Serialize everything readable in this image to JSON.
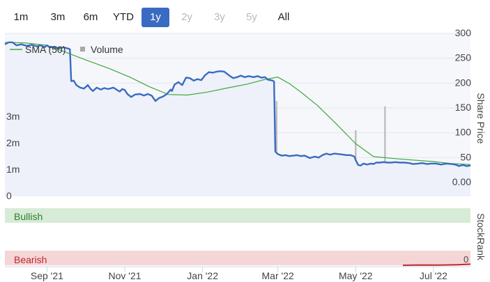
{
  "range_buttons": [
    {
      "label": "1m",
      "state": "normal"
    },
    {
      "label": "3m",
      "state": "normal"
    },
    {
      "label": "6m",
      "state": "normal"
    },
    {
      "label": "YTD",
      "state": "normal"
    },
    {
      "label": "1y",
      "state": "active"
    },
    {
      "label": "2y",
      "state": "disabled"
    },
    {
      "label": "3y",
      "state": "disabled"
    },
    {
      "label": "5y",
      "state": "disabled"
    },
    {
      "label": "All",
      "state": "normal"
    }
  ],
  "colors": {
    "price_line": "#3a6bc2",
    "sma_line": "#3ea83e",
    "volume_bar": "#bdbdbd",
    "bullish_band": "#d6ecd6",
    "bearish_band": "#f4d6d6",
    "stockrank_line": "#c0262d",
    "active_button": "#3a6bc2"
  },
  "chart_data": [
    {
      "type": "line",
      "legend": [
        {
          "name": "SMA (50)",
          "icon": "line"
        },
        {
          "name": "Volume",
          "icon": "square"
        }
      ],
      "right_axis_label": "Share Price",
      "right_ticks": [
        "300",
        "250",
        "200",
        "150",
        "100",
        "50",
        "0.00"
      ],
      "right_ylim": [
        0,
        300
      ],
      "left_ticks": [
        "3m",
        "2m",
        "1m",
        "0"
      ],
      "left_ylim": [
        0,
        4000000
      ],
      "x_ticks": [
        "Sep '21",
        "Nov '21",
        "Jan '22",
        "Mar '22",
        "May '22",
        "Jul '22"
      ],
      "x_tick_dates": [
        "2021-09-01",
        "2021-11-01",
        "2022-01-01",
        "2022-03-01",
        "2022-05-01",
        "2022-07-01"
      ],
      "x_range": [
        "2021-07-30",
        "2022-07-30"
      ],
      "series": [
        {
          "name": "Price",
          "points": [
            [
              "2021-07-30",
              278
            ],
            [
              "2021-08-02",
              282
            ],
            [
              "2021-08-05",
              282
            ],
            [
              "2021-08-08",
              276
            ],
            [
              "2021-08-12",
              278
            ],
            [
              "2021-08-16",
              275
            ],
            [
              "2021-08-20",
              277
            ],
            [
              "2021-08-24",
              274
            ],
            [
              "2021-08-27",
              276
            ],
            [
              "2021-08-30",
              272
            ],
            [
              "2021-09-01",
              276
            ],
            [
              "2021-09-03",
              272
            ],
            [
              "2021-09-07",
              273
            ],
            [
              "2021-09-10",
              270
            ],
            [
              "2021-09-14",
              272
            ],
            [
              "2021-09-17",
              270
            ],
            [
              "2021-09-19",
              268
            ],
            [
              "2021-09-20",
              204
            ],
            [
              "2021-09-22",
              205
            ],
            [
              "2021-09-24",
              196
            ],
            [
              "2021-09-27",
              191
            ],
            [
              "2021-09-30",
              189
            ],
            [
              "2021-10-03",
              196
            ],
            [
              "2021-10-05",
              189
            ],
            [
              "2021-10-07",
              184
            ],
            [
              "2021-10-10",
              191
            ],
            [
              "2021-10-13",
              187
            ],
            [
              "2021-10-16",
              190
            ],
            [
              "2021-10-19",
              188
            ],
            [
              "2021-10-23",
              191
            ],
            [
              "2021-10-26",
              186
            ],
            [
              "2021-10-28",
              183
            ],
            [
              "2021-10-30",
              188
            ],
            [
              "2021-11-01",
              186
            ],
            [
              "2021-11-03",
              178
            ],
            [
              "2021-11-06",
              172
            ],
            [
              "2021-11-09",
              177
            ],
            [
              "2021-11-13",
              178
            ],
            [
              "2021-11-16",
              175
            ],
            [
              "2021-11-19",
              178
            ],
            [
              "2021-11-22",
              175
            ],
            [
              "2021-11-25",
              164
            ],
            [
              "2021-11-28",
              170
            ],
            [
              "2021-12-01",
              173
            ],
            [
              "2021-12-04",
              178
            ],
            [
              "2021-12-07",
              187
            ],
            [
              "2021-12-08",
              184
            ],
            [
              "2021-12-10",
              197
            ],
            [
              "2021-12-13",
              202
            ],
            [
              "2021-12-16",
              196
            ],
            [
              "2021-12-19",
              211
            ],
            [
              "2021-12-22",
              210
            ],
            [
              "2021-12-25",
              205
            ],
            [
              "2021-12-28",
              208
            ],
            [
              "2021-12-31",
              206
            ],
            [
              "2022-01-03",
              216
            ],
            [
              "2022-01-06",
              222
            ],
            [
              "2022-01-09",
              221
            ],
            [
              "2022-01-12",
              223
            ],
            [
              "2022-01-15",
              224
            ],
            [
              "2022-01-18",
              223
            ],
            [
              "2022-01-22",
              215
            ],
            [
              "2022-01-25",
              210
            ],
            [
              "2022-01-28",
              212
            ],
            [
              "2022-01-31",
              215
            ],
            [
              "2022-02-03",
              212
            ],
            [
              "2022-02-06",
              214
            ],
            [
              "2022-02-10",
              212
            ],
            [
              "2022-02-13",
              214
            ],
            [
              "2022-02-16",
              211
            ],
            [
              "2022-02-19",
              212
            ],
            [
              "2022-02-21",
              207
            ],
            [
              "2022-02-23",
              206
            ],
            [
              "2022-02-25",
              205
            ],
            [
              "2022-02-26",
              203
            ],
            [
              "2022-02-27",
              62
            ],
            [
              "2022-03-01",
              57
            ],
            [
              "2022-03-04",
              54
            ],
            [
              "2022-03-07",
              55
            ],
            [
              "2022-03-10",
              53
            ],
            [
              "2022-03-13",
              54
            ],
            [
              "2022-03-16",
              55
            ],
            [
              "2022-03-19",
              53
            ],
            [
              "2022-03-22",
              54
            ],
            [
              "2022-03-26",
              49
            ],
            [
              "2022-03-30",
              52
            ],
            [
              "2022-04-02",
              50
            ],
            [
              "2022-04-05",
              55
            ],
            [
              "2022-04-08",
              58
            ],
            [
              "2022-04-11",
              56
            ],
            [
              "2022-04-14",
              58
            ],
            [
              "2022-04-18",
              57
            ],
            [
              "2022-04-21",
              56
            ],
            [
              "2022-04-24",
              55
            ],
            [
              "2022-04-27",
              55
            ],
            [
              "2022-04-30",
              52
            ],
            [
              "2022-05-01",
              45
            ],
            [
              "2022-05-03",
              35
            ],
            [
              "2022-05-05",
              34
            ],
            [
              "2022-05-07",
              38
            ],
            [
              "2022-05-10",
              36
            ],
            [
              "2022-05-13",
              38
            ],
            [
              "2022-05-15",
              37
            ],
            [
              "2022-05-17",
              40
            ],
            [
              "2022-05-20",
              40
            ],
            [
              "2022-05-23",
              41
            ],
            [
              "2022-05-26",
              40
            ],
            [
              "2022-05-29",
              40
            ],
            [
              "2022-06-01",
              41
            ],
            [
              "2022-06-05",
              40
            ],
            [
              "2022-06-08",
              40
            ],
            [
              "2022-06-12",
              39
            ],
            [
              "2022-06-15",
              37
            ],
            [
              "2022-06-19",
              38
            ],
            [
              "2022-06-22",
              39
            ],
            [
              "2022-06-26",
              37
            ],
            [
              "2022-06-29",
              38
            ],
            [
              "2022-07-03",
              38
            ],
            [
              "2022-07-07",
              36
            ],
            [
              "2022-07-11",
              38
            ],
            [
              "2022-07-15",
              37
            ],
            [
              "2022-07-18",
              36
            ],
            [
              "2022-07-21",
              33
            ],
            [
              "2022-07-24",
              35
            ],
            [
              "2022-07-27",
              33
            ],
            [
              "2022-07-30",
              34
            ]
          ]
        },
        {
          "name": "SMA (50)",
          "points": [
            [
              "2021-07-30",
              282
            ],
            [
              "2021-08-15",
              281
            ],
            [
              "2021-09-01",
              276
            ],
            [
              "2021-09-15",
              263
            ],
            [
              "2021-10-01",
              247
            ],
            [
              "2021-10-20",
              229
            ],
            [
              "2021-11-05",
              212
            ],
            [
              "2021-11-20",
              193
            ],
            [
              "2021-12-05",
              177
            ],
            [
              "2021-12-20",
              176
            ],
            [
              "2022-01-05",
              182
            ],
            [
              "2022-01-20",
              190
            ],
            [
              "2022-02-05",
              198
            ],
            [
              "2022-02-20",
              208
            ],
            [
              "2022-03-01",
              212
            ],
            [
              "2022-03-10",
              199
            ],
            [
              "2022-03-20",
              180
            ],
            [
              "2022-04-01",
              155
            ],
            [
              "2022-04-15",
              120
            ],
            [
              "2022-05-01",
              78
            ],
            [
              "2022-05-15",
              52
            ],
            [
              "2022-06-01",
              48
            ],
            [
              "2022-06-15",
              45
            ],
            [
              "2022-07-01",
              42
            ],
            [
              "2022-07-15",
              38
            ],
            [
              "2022-07-30",
              36
            ]
          ]
        }
      ],
      "volume": [
        [
          "2021-08-08",
          420000
        ],
        [
          "2021-08-26",
          200000
        ],
        [
          "2021-09-02",
          300000
        ],
        [
          "2021-09-17",
          250000
        ],
        [
          "2021-09-30",
          150000
        ],
        [
          "2021-10-10",
          120000
        ],
        [
          "2021-10-17",
          180000
        ],
        [
          "2021-10-28",
          900000
        ],
        [
          "2021-11-23",
          100000
        ],
        [
          "2021-12-08",
          200000
        ],
        [
          "2021-12-25",
          420000
        ],
        [
          "2022-01-02",
          200000
        ],
        [
          "2022-01-12",
          100000
        ],
        [
          "2022-02-04",
          150000
        ],
        [
          "2022-02-28",
          3600000
        ],
        [
          "2022-03-10",
          250000
        ],
        [
          "2022-03-18",
          120000
        ],
        [
          "2022-04-03",
          150000
        ],
        [
          "2022-04-18",
          300000
        ],
        [
          "2022-05-01",
          2500000
        ],
        [
          "2022-05-05",
          400000
        ],
        [
          "2022-05-15",
          250000
        ],
        [
          "2022-05-24",
          3400000
        ],
        [
          "2022-05-27",
          500000
        ],
        [
          "2022-06-20",
          150000
        ],
        [
          "2022-07-10",
          120000
        ],
        [
          "2022-07-25",
          200000
        ]
      ]
    },
    {
      "type": "line",
      "right_axis_label": "StockRank",
      "bands": [
        {
          "label": "Bullish"
        },
        {
          "label": "Bearish"
        }
      ],
      "right_tick": "0",
      "ylim": [
        0,
        100
      ],
      "series": [
        {
          "name": "StockRank",
          "points": [
            [
              "2022-06-07",
              0
            ],
            [
              "2022-06-20",
              0.5
            ],
            [
              "2022-07-05",
              0.3
            ],
            [
              "2022-07-20",
              1
            ],
            [
              "2022-07-30",
              2
            ]
          ]
        }
      ]
    }
  ]
}
